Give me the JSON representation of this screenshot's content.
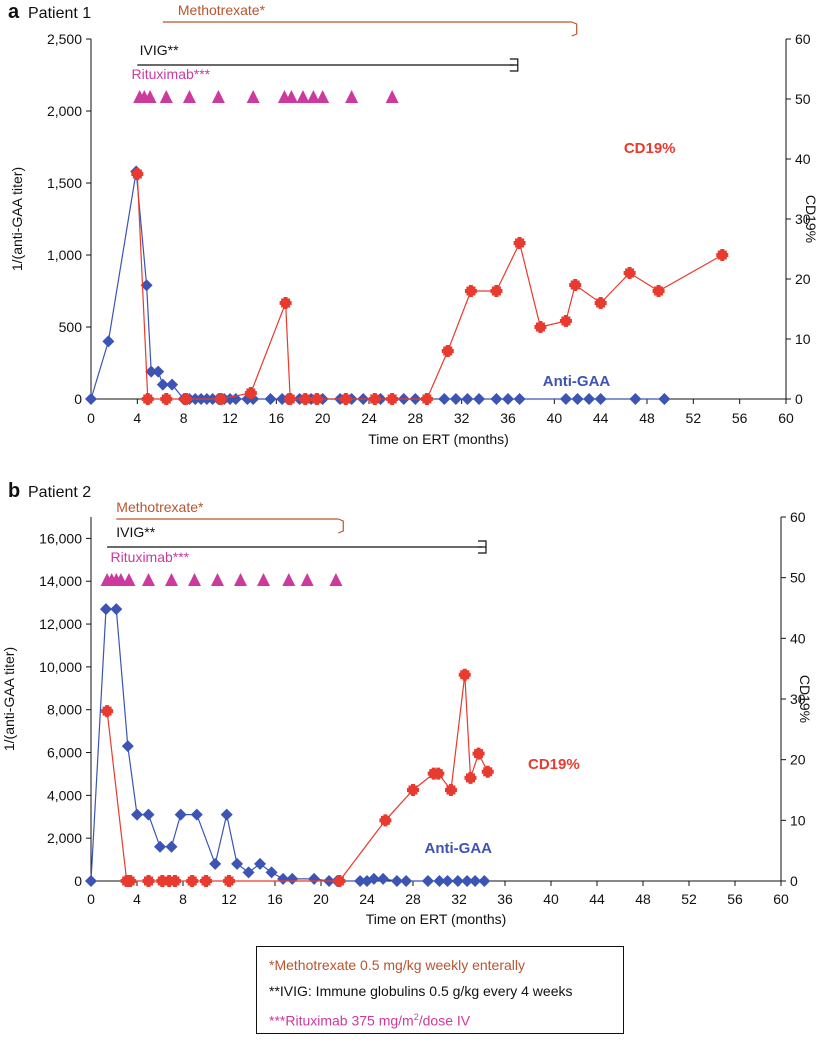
{
  "colors": {
    "anti_gaa": "#3c54b4",
    "cd19": "#e83a2f",
    "methotrexate": "#b8552f",
    "ivig": "#111111",
    "rituximab": "#cc3a9e",
    "axis": "#111111"
  },
  "chart_data": [
    {
      "type": "line",
      "panel_letter": "a",
      "title": "Patient 1",
      "xlabel": "Time on ERT (months)",
      "ylabel": "1/(anti-GAA titer)",
      "y2label": "CD19%",
      "xlim": [
        0,
        60
      ],
      "ylim": [
        0,
        2500
      ],
      "y2lim": [
        0,
        60
      ],
      "x_ticks": [
        "0",
        "4",
        "8",
        "12",
        "16",
        "20",
        "24",
        "28",
        "32",
        "36",
        "40",
        "44",
        "48",
        "52",
        "56",
        "60"
      ],
      "x_tick_values": [
        0,
        4,
        8,
        12,
        16,
        20,
        24,
        28,
        32,
        36,
        40,
        44,
        48,
        52,
        56,
        60
      ],
      "y_ticks": [
        "0",
        "500",
        "1,000",
        "1,500",
        "2,000",
        "2,500"
      ],
      "y_tick_values": [
        0,
        500,
        1000,
        1500,
        2000,
        2500
      ],
      "y2_ticks": [
        "0",
        "10",
        "20",
        "30",
        "40",
        "50",
        "60"
      ],
      "y2_tick_values": [
        0,
        10,
        20,
        30,
        40,
        50,
        60
      ],
      "series": [
        {
          "name": "Anti-GAA",
          "axis": "left",
          "label_x": 39,
          "label_y": 90,
          "x": [
            0,
            1.5,
            3.9,
            4.8,
            5.2,
            5.8,
            6.2,
            7,
            8,
            8.5,
            9,
            9.5,
            10,
            10.5,
            11,
            11.5,
            12,
            12.5,
            13.5,
            14,
            15.5,
            16.5,
            17,
            18,
            19,
            20,
            21.5,
            22.5,
            23.5,
            24.5,
            25,
            26,
            27,
            28,
            29,
            30.5,
            31.5,
            32.5,
            33.5,
            35,
            36,
            37,
            41,
            42,
            43,
            44,
            47,
            49.5
          ],
          "y": [
            0,
            400,
            1580,
            790,
            190,
            190,
            100,
            100,
            0,
            0,
            0,
            0,
            0,
            0,
            0,
            0,
            0,
            0,
            0,
            0,
            0,
            0,
            0,
            0,
            0,
            0,
            0,
            0,
            0,
            0,
            0,
            0,
            0,
            0,
            0,
            0,
            0,
            0,
            0,
            0,
            0,
            0,
            0,
            0,
            0,
            0,
            0,
            0
          ]
        },
        {
          "name": "CD19%",
          "axis": "right",
          "label_x": 46,
          "label_y": 41,
          "x": [
            4,
            4.9,
            6.5,
            8.2,
            11.2,
            13.8,
            16.8,
            17.2,
            18.5,
            19.5,
            22,
            24.5,
            26,
            29,
            30.8,
            32.8,
            35,
            37,
            38.8,
            41,
            41.8,
            44,
            46.5,
            49,
            54.5
          ],
          "y": [
            37.5,
            0,
            0,
            0,
            0,
            1,
            16,
            0,
            0,
            0,
            0,
            0,
            0,
            0,
            8,
            18,
            18,
            26,
            12,
            13,
            19,
            16,
            21,
            18,
            24
          ]
        }
      ],
      "treatments": [
        {
          "name": "Methotrexate*",
          "start": 6.2,
          "end": 41.5,
          "end_cap": "bracket",
          "label_x": 7.5
        },
        {
          "name": "IVIG**",
          "start": 4,
          "end": 36.5,
          "end_cap": "double",
          "label_x": 4.2
        },
        {
          "name": "Rituximab***",
          "label_x": 3.5,
          "doses": [
            4.2,
            4.6,
            5.1,
            6.5,
            8.5,
            11,
            14,
            16.7,
            17.3,
            18.3,
            19.2,
            20,
            22.5,
            26
          ]
        }
      ]
    },
    {
      "type": "line",
      "panel_letter": "b",
      "title": "Patient 2",
      "xlabel": "Time on ERT (months)",
      "ylabel": "1/(anti-GAA titer)",
      "y2label": "CD19%",
      "xlim": [
        0,
        60
      ],
      "ylim": [
        0,
        17000
      ],
      "y2lim": [
        0,
        60
      ],
      "x_ticks": [
        "0",
        "4",
        "8",
        "12",
        "16",
        "20",
        "24",
        "28",
        "32",
        "36",
        "40",
        "44",
        "48",
        "52",
        "56",
        "60"
      ],
      "x_tick_values": [
        0,
        4,
        8,
        12,
        16,
        20,
        24,
        28,
        32,
        36,
        40,
        44,
        48,
        52,
        56,
        60
      ],
      "y_ticks": [
        "0",
        "2,000",
        "4,000",
        "6,000",
        "8,000",
        "10,000",
        "12,000",
        "14,000",
        "16,000"
      ],
      "y_tick_values": [
        0,
        2000,
        4000,
        6000,
        8000,
        10000,
        12000,
        14000,
        16000
      ],
      "y2_ticks": [
        "0",
        "10",
        "20",
        "30",
        "40",
        "50",
        "60"
      ],
      "y2_tick_values": [
        0,
        10,
        20,
        30,
        40,
        50,
        60
      ],
      "series": [
        {
          "name": "Anti-GAA",
          "axis": "left",
          "label_x": 29,
          "label_y": 1300,
          "x": [
            0,
            1.3,
            2.2,
            3.2,
            4,
            5,
            6,
            7,
            7.8,
            9.2,
            10.8,
            11.8,
            12.7,
            13.7,
            14.7,
            15.7,
            16.7,
            17.5,
            19.4,
            20.7,
            21.4,
            23.4,
            24,
            24.6,
            25.4,
            26.6,
            27.4,
            29.3,
            30.3,
            31,
            31.9,
            32.7,
            33.4,
            34.2
          ],
          "y": [
            0,
            12700,
            12700,
            6300,
            3100,
            3100,
            1600,
            1600,
            3100,
            3100,
            800,
            3100,
            800,
            400,
            800,
            400,
            100,
            100,
            100,
            0,
            0,
            0,
            0,
            100,
            100,
            0,
            0,
            0,
            0,
            0,
            0,
            0,
            0,
            0
          ]
        },
        {
          "name": "CD19%",
          "axis": "right",
          "label_x": 38,
          "label_y": 18.5,
          "x": [
            1.4,
            3.1,
            3.4,
            5,
            6.2,
            6.8,
            7.3,
            8.8,
            10,
            12,
            21.6,
            25.6,
            28,
            29.8,
            30.2,
            31.3,
            32.5,
            33,
            33.7,
            34.5
          ],
          "y": [
            28,
            0,
            0,
            0,
            0,
            0,
            0,
            0,
            0,
            0,
            0,
            10,
            15,
            17.7,
            17.7,
            15,
            34,
            17,
            21,
            18
          ]
        }
      ],
      "treatments": [
        {
          "name": "Methotrexate*",
          "start": 2.2,
          "end": 21.5,
          "end_cap": "bracket",
          "label_x": 2.2
        },
        {
          "name": "IVIG**",
          "start": 1.4,
          "end": 34,
          "end_cap": "double",
          "label_x": 2.2
        },
        {
          "name": "Rituximab***",
          "label_x": 1.7,
          "doses": [
            1.4,
            1.8,
            2.2,
            2.6,
            3.3,
            5,
            7,
            9,
            11,
            13,
            15,
            17.2,
            18.8,
            21.3
          ]
        }
      ]
    }
  ],
  "legend": {
    "methotrexate": "*Methotrexate 0.5 mg/kg weekly enterally",
    "ivig": "**IVIG: Immune globulins 0.5 g/kg every 4 weeks",
    "rituximab_prefix": "***Rituximab 375 mg/m",
    "rituximab_sup": "2",
    "rituximab_suffix": "/dose IV"
  }
}
